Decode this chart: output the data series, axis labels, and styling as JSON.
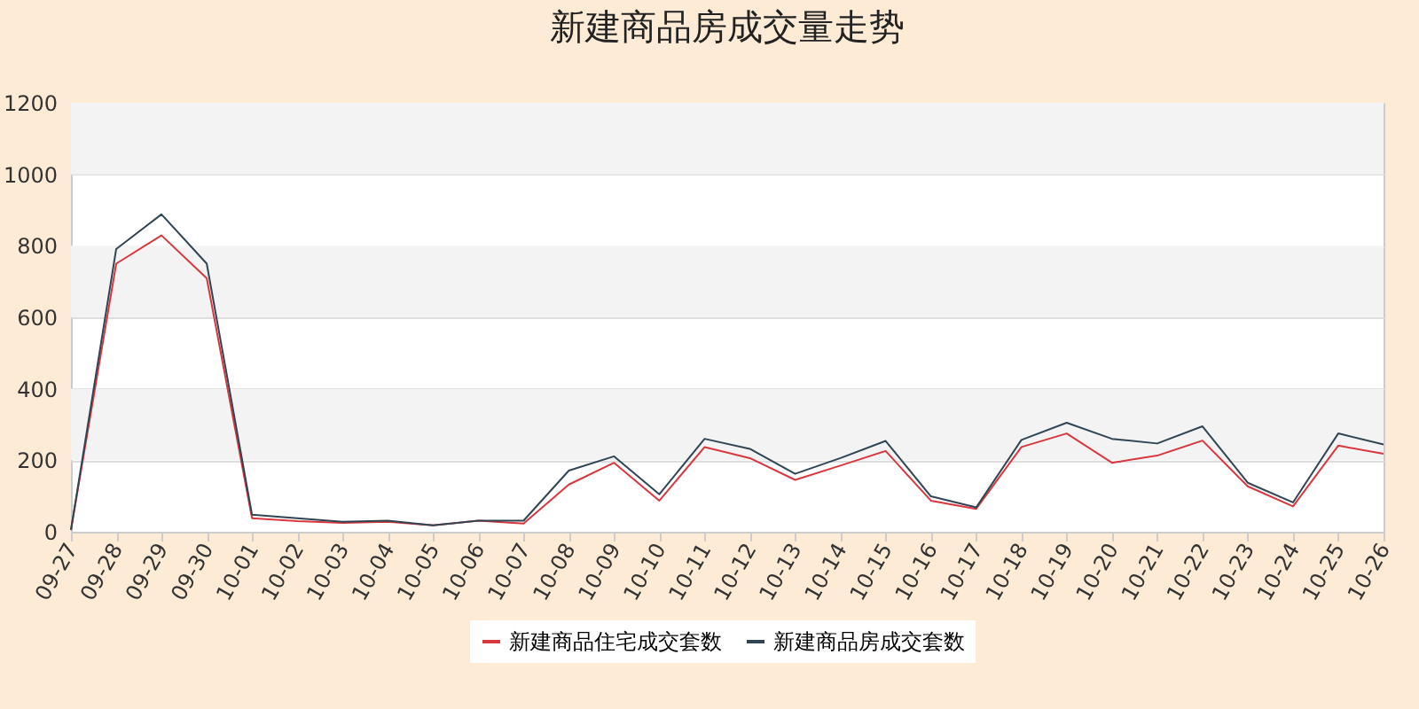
{
  "chart_data": {
    "type": "line",
    "title": "新建商品房成交量走势",
    "categories": [
      "09-27",
      "09-28",
      "09-29",
      "09-30",
      "10-01",
      "10-02",
      "10-03",
      "10-04",
      "10-05",
      "10-06",
      "10-07",
      "10-08",
      "10-09",
      "10-10",
      "10-11",
      "10-12",
      "10-13",
      "10-14",
      "10-15",
      "10-16",
      "10-17",
      "10-18",
      "10-19",
      "10-20",
      "10-21",
      "10-22",
      "10-23",
      "10-24",
      "10-25",
      "10-26"
    ],
    "series": [
      {
        "name": "新建商品住宅成交套数",
        "color": "#d9363e",
        "values": [
          5,
          750,
          829,
          709,
          38,
          30,
          25,
          28,
          18,
          31,
          23,
          132,
          193,
          87,
          237,
          206,
          145,
          185,
          226,
          87,
          64,
          237,
          275,
          193,
          213,
          255,
          127,
          71,
          241,
          218
        ]
      },
      {
        "name": "新建商品房成交套数",
        "color": "#2f4554",
        "values": [
          5,
          791,
          888,
          750,
          48,
          38,
          28,
          31,
          18,
          31,
          31,
          171,
          211,
          105,
          260,
          232,
          162,
          206,
          254,
          99,
          68,
          257,
          305,
          260,
          247,
          295,
          137,
          82,
          275,
          244
        ]
      }
    ],
    "ylim": [
      0,
      1200
    ],
    "yticks": [
      0,
      200,
      400,
      600,
      800,
      1000,
      1200
    ],
    "grid": "y",
    "legend": "bottom",
    "marker": "none",
    "line_style": "solid"
  }
}
